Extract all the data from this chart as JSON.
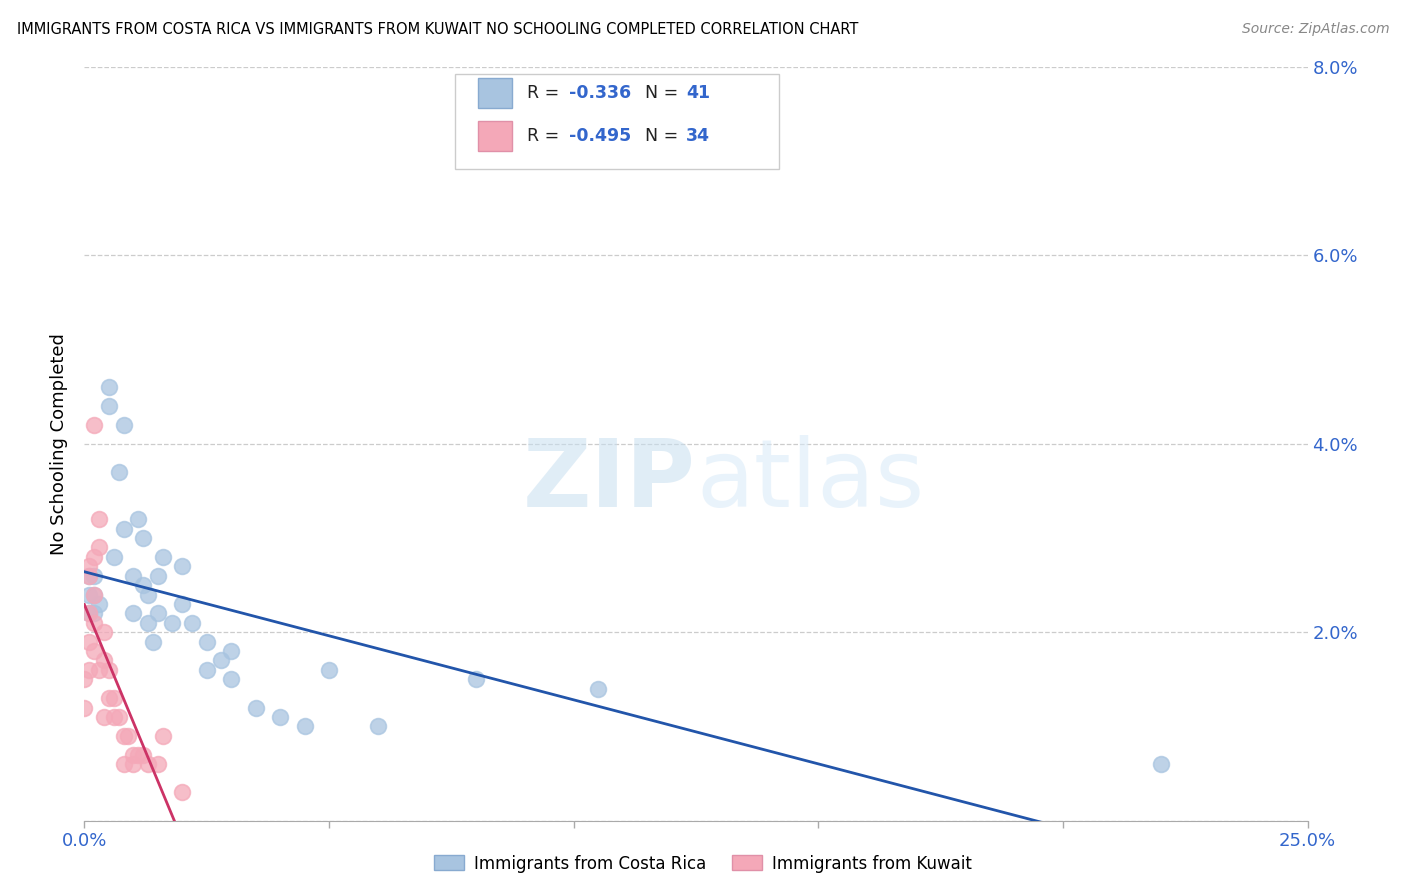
{
  "title": "IMMIGRANTS FROM COSTA RICA VS IMMIGRANTS FROM KUWAIT NO SCHOOLING COMPLETED CORRELATION CHART",
  "source": "Source: ZipAtlas.com",
  "ylabel": "No Schooling Completed",
  "xlim": [
    0.0,
    0.25
  ],
  "ylim": [
    0.0,
    0.08
  ],
  "xtick_positions": [
    0.0,
    0.05,
    0.1,
    0.15,
    0.2,
    0.25
  ],
  "xtick_labels": [
    "0.0%",
    "",
    "",
    "",
    "",
    "25.0%"
  ],
  "ytick_positions": [
    0.0,
    0.02,
    0.04,
    0.06,
    0.08
  ],
  "ytick_labels_right": [
    "",
    "2.0%",
    "4.0%",
    "6.0%",
    "8.0%"
  ],
  "costa_rica_color": "#a8c4e0",
  "kuwait_color": "#f4a8b8",
  "costa_rica_line_color": "#2255aa",
  "kuwait_line_color": "#cc3366",
  "costa_rica_R": -0.336,
  "costa_rica_N": 41,
  "kuwait_R": -0.495,
  "kuwait_N": 34,
  "watermark_zip": "ZIP",
  "watermark_atlas": "atlas",
  "legend_label_cr": "Immigrants from Costa Rica",
  "legend_label_kw": "Immigrants from Kuwait",
  "costa_rica_x": [
    0.001,
    0.001,
    0.001,
    0.002,
    0.002,
    0.002,
    0.003,
    0.005,
    0.005,
    0.006,
    0.007,
    0.008,
    0.008,
    0.01,
    0.01,
    0.011,
    0.012,
    0.012,
    0.013,
    0.013,
    0.014,
    0.015,
    0.015,
    0.016,
    0.018,
    0.02,
    0.02,
    0.022,
    0.025,
    0.025,
    0.028,
    0.03,
    0.03,
    0.035,
    0.04,
    0.045,
    0.05,
    0.06,
    0.08,
    0.105,
    0.22
  ],
  "costa_rica_y": [
    0.026,
    0.024,
    0.022,
    0.026,
    0.024,
    0.022,
    0.023,
    0.044,
    0.046,
    0.028,
    0.037,
    0.031,
    0.042,
    0.026,
    0.022,
    0.032,
    0.03,
    0.025,
    0.021,
    0.024,
    0.019,
    0.026,
    0.022,
    0.028,
    0.021,
    0.027,
    0.023,
    0.021,
    0.019,
    0.016,
    0.017,
    0.015,
    0.018,
    0.012,
    0.011,
    0.01,
    0.016,
    0.01,
    0.015,
    0.014,
    0.006
  ],
  "kuwait_x": [
    0.0,
    0.0,
    0.001,
    0.001,
    0.001,
    0.001,
    0.001,
    0.002,
    0.002,
    0.002,
    0.002,
    0.002,
    0.003,
    0.003,
    0.003,
    0.004,
    0.004,
    0.004,
    0.005,
    0.005,
    0.006,
    0.006,
    0.007,
    0.008,
    0.008,
    0.009,
    0.01,
    0.01,
    0.011,
    0.012,
    0.013,
    0.015,
    0.016,
    0.02
  ],
  "kuwait_y": [
    0.015,
    0.012,
    0.027,
    0.026,
    0.022,
    0.019,
    0.016,
    0.042,
    0.028,
    0.024,
    0.021,
    0.018,
    0.032,
    0.029,
    0.016,
    0.02,
    0.017,
    0.011,
    0.016,
    0.013,
    0.013,
    0.011,
    0.011,
    0.009,
    0.006,
    0.009,
    0.007,
    0.006,
    0.007,
    0.007,
    0.006,
    0.006,
    0.009,
    0.003
  ]
}
